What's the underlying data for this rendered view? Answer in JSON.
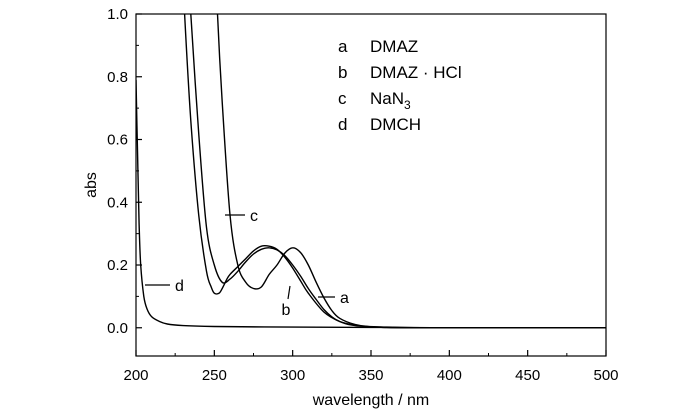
{
  "chart_data": {
    "type": "line",
    "xlabel": "wavelength / nm",
    "ylabel": "abs",
    "xlim": [
      200,
      500
    ],
    "ylim": [
      -0.09,
      1.0
    ],
    "x_ticks": [
      "200",
      "250",
      "300",
      "350",
      "400",
      "450",
      "500"
    ],
    "y_ticks": [
      "0.0",
      "0.2",
      "0.4",
      "0.6",
      "0.8",
      "1.0"
    ],
    "grid": false,
    "legend": {
      "placement": "top-center",
      "entries": [
        {
          "key": "a",
          "text": "DMAZ"
        },
        {
          "key": "b",
          "text": "DMAZ · HCl"
        },
        {
          "key": "c",
          "text": "NaN",
          "sub": "3"
        },
        {
          "key": "d",
          "text": "DMCH"
        }
      ]
    },
    "series": [
      {
        "name": "a",
        "x": [
          235,
          240,
          245,
          250,
          255,
          260,
          265,
          270,
          275,
          280,
          285,
          290,
          295,
          300,
          305,
          310,
          315,
          320,
          325,
          330,
          340,
          350,
          360,
          380,
          400,
          450,
          500
        ],
        "y": [
          1.0,
          0.62,
          0.32,
          0.2,
          0.145,
          0.155,
          0.18,
          0.21,
          0.235,
          0.25,
          0.255,
          0.248,
          0.23,
          0.2,
          0.165,
          0.125,
          0.09,
          0.058,
          0.035,
          0.02,
          0.008,
          0.003,
          0.001,
          0.0,
          0.0,
          0.0,
          0.0
        ]
      },
      {
        "name": "b",
        "x": [
          252,
          255,
          260,
          265,
          270,
          275,
          280,
          285,
          290,
          295,
          300,
          305,
          310,
          315,
          320,
          325,
          330,
          340,
          350,
          360,
          380,
          400,
          450,
          500
        ],
        "y": [
          1.0,
          0.72,
          0.36,
          0.2,
          0.145,
          0.125,
          0.13,
          0.17,
          0.2,
          0.238,
          0.255,
          0.24,
          0.2,
          0.145,
          0.095,
          0.055,
          0.03,
          0.01,
          0.003,
          0.001,
          0.0,
          0.0,
          0.0,
          0.0
        ]
      },
      {
        "name": "c",
        "x": [
          231,
          235,
          240,
          245,
          248,
          250,
          253,
          255,
          258,
          260,
          265,
          270,
          275,
          280,
          285,
          290,
          295,
          300,
          305,
          310,
          320,
          330,
          340,
          360,
          400,
          500
        ],
        "y": [
          1.0,
          0.66,
          0.36,
          0.18,
          0.13,
          0.11,
          0.11,
          0.125,
          0.155,
          0.17,
          0.195,
          0.22,
          0.245,
          0.26,
          0.26,
          0.25,
          0.225,
          0.19,
          0.15,
          0.11,
          0.05,
          0.02,
          0.007,
          0.002,
          0.0,
          0.0
        ]
      },
      {
        "name": "d",
        "x": [
          200,
          201,
          202,
          203,
          205,
          207,
          210,
          215,
          220,
          230,
          250,
          300,
          350,
          400,
          500
        ],
        "y": [
          0.79,
          0.55,
          0.33,
          0.2,
          0.1,
          0.06,
          0.035,
          0.02,
          0.012,
          0.007,
          0.004,
          0.002,
          0.001,
          0.0,
          0.0
        ]
      }
    ],
    "curve_labels": [
      {
        "series": "a",
        "text": "a"
      },
      {
        "series": "b",
        "text": "b"
      },
      {
        "series": "c",
        "text": "c"
      },
      {
        "series": "d",
        "text": "d"
      }
    ]
  }
}
